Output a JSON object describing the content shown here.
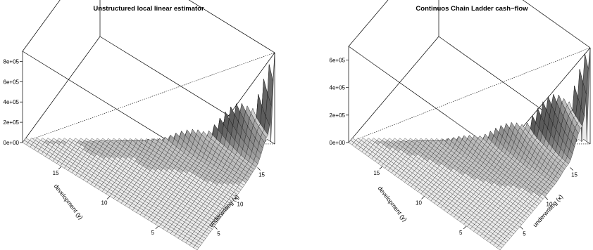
{
  "chart_data": [
    {
      "type": "surface3d",
      "title": "Unstructured local linear estimator",
      "xlabel": "underwriting (x)",
      "ylabel": "development (y)",
      "zlabel": "",
      "x_ticks": [
        "5",
        "10",
        "15"
      ],
      "y_ticks": [
        "5",
        "10",
        "15"
      ],
      "z_ticks": [
        "0e+00",
        "2e+05",
        "4e+05",
        "6e+05",
        "8e+05"
      ],
      "xlim": [
        1,
        19
      ],
      "ylim": [
        1,
        19
      ],
      "zlim": [
        0,
        900000
      ],
      "support": "x + y <= 20",
      "surface": [
        {
          "x": 15,
          "y": 2,
          "z": 150000
        },
        {
          "x": 16,
          "y": 2,
          "z": 210000
        },
        {
          "x": 17,
          "y": 2,
          "z": 310000
        },
        {
          "x": 18,
          "y": 1,
          "z": 600000
        },
        {
          "x": 19,
          "y": 1,
          "z": 700000
        },
        {
          "x": 10,
          "y": 2,
          "z": 100000
        },
        {
          "x": 5,
          "y": 2,
          "z": 30000
        },
        {
          "x": 10,
          "y": 6,
          "z": 40000
        }
      ]
    },
    {
      "type": "surface3d",
      "title": "Continuos Chain Ladder cash−flow",
      "xlabel": "underwriting (x)",
      "ylabel": "development (y)",
      "zlabel": "",
      "x_ticks": [
        "5",
        "10",
        "15"
      ],
      "y_ticks": [
        "5",
        "10",
        "15"
      ],
      "z_ticks": [
        "0e+00",
        "2e+05",
        "4e+05",
        "6e+05"
      ],
      "xlim": [
        1,
        19
      ],
      "ylim": [
        1,
        19
      ],
      "zlim": [
        0,
        700000
      ],
      "support": "x + y <= 20",
      "surface": [
        {
          "x": 14,
          "y": 2,
          "z": 200000
        },
        {
          "x": 16,
          "y": 2,
          "z": 300000
        },
        {
          "x": 18,
          "y": 1,
          "z": 500000
        },
        {
          "x": 19,
          "y": 1,
          "z": 580000
        },
        {
          "x": 10,
          "y": 2,
          "z": 110000
        },
        {
          "x": 5,
          "y": 2,
          "z": 40000
        },
        {
          "x": 10,
          "y": 6,
          "z": 35000
        }
      ]
    }
  ]
}
